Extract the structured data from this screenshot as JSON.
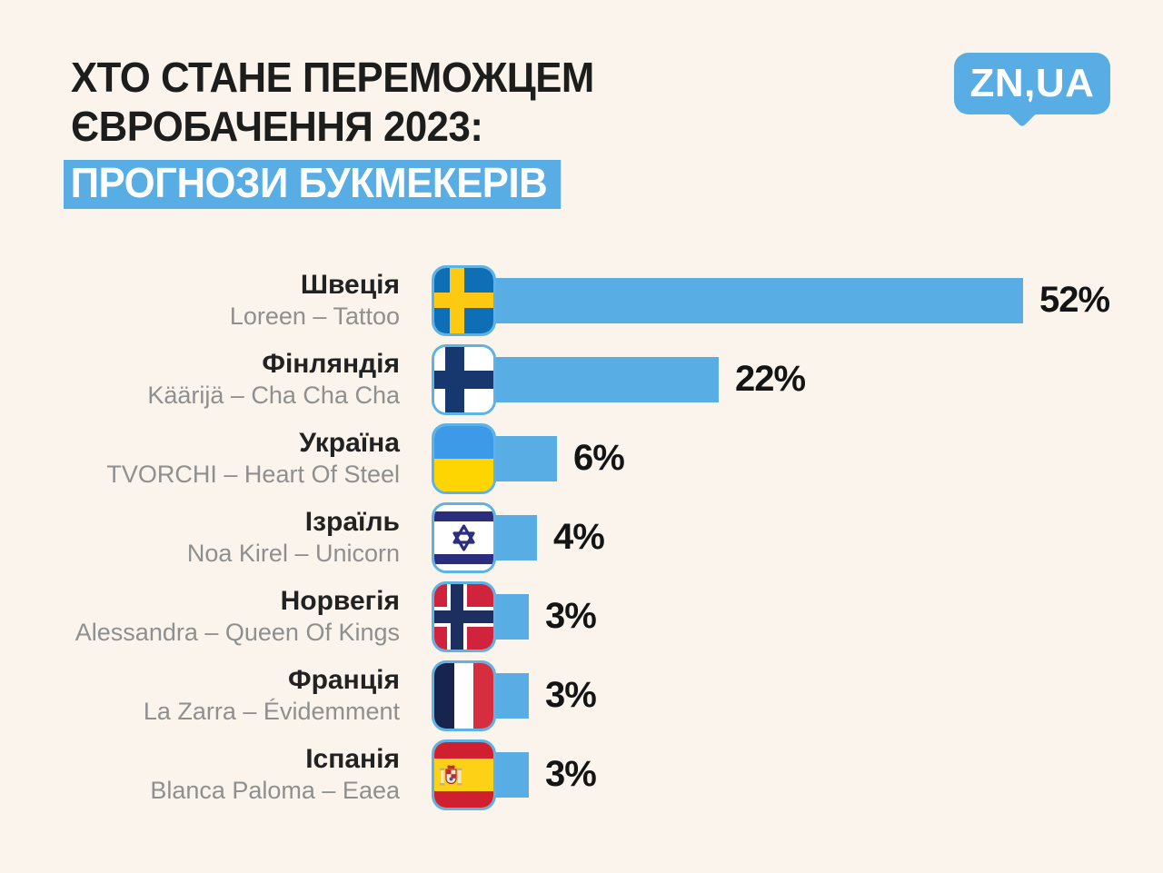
{
  "colors": {
    "background": "#faf4ec",
    "accent_blue": "#57ade4",
    "title_text": "#1d1d1b",
    "artist_text": "#8f8f8f"
  },
  "header": {
    "title_line1": "ХТО СТАНЕ ПЕРЕМОЖЦЕМ",
    "title_line2": "ЄВРОБАЧЕННЯ 2023:",
    "title_highlight": "ПРОГНОЗИ БУКМЕКЕРІВ"
  },
  "logo": {
    "text": "ZN,UA"
  },
  "chart_data": {
    "type": "bar",
    "orientation": "horizontal",
    "title": "ХТО СТАНЕ ПЕРЕМОЖЦЕМ ЄВРОБАЧЕННЯ 2023: ПРОГНОЗИ БУКМЕКЕРІВ",
    "unit": "%",
    "value_axis_range": [
      0,
      52
    ],
    "grid": false,
    "legend": false,
    "bar_color": "#57ade4",
    "categories": [
      "Швеція",
      "Фінляндія",
      "Україна",
      "Ізраїль",
      "Норвегія",
      "Франція",
      "Іспанія"
    ],
    "values": [
      52,
      22,
      6,
      4,
      3,
      3,
      3
    ],
    "rows": [
      {
        "country": "Швеція",
        "artist": "Loreen – Tattoo",
        "value": 52,
        "value_label": "52%",
        "flag": "sweden-flag"
      },
      {
        "country": "Фінляндія",
        "artist": "Käärijä – Cha Cha Cha",
        "value": 22,
        "value_label": "22%",
        "flag": "finland-flag"
      },
      {
        "country": "Україна",
        "artist": "TVORCHI – Heart Of Steel",
        "value": 6,
        "value_label": "6%",
        "flag": "ukraine-flag"
      },
      {
        "country": "Ізраїль",
        "artist": "Noa Kirel – Unicorn",
        "value": 4,
        "value_label": "4%",
        "flag": "israel-flag"
      },
      {
        "country": "Норвегія",
        "artist": "Alessandra – Queen Of Kings",
        "value": 3,
        "value_label": "3%",
        "flag": "norway-flag"
      },
      {
        "country": "Франція",
        "artist": "La Zarra – Évidemment",
        "value": 3,
        "value_label": "3%",
        "flag": "france-flag"
      },
      {
        "country": "Іспанія",
        "artist": "Blanca Paloma – Eaea",
        "value": 3,
        "value_label": "3%",
        "flag": "spain-flag"
      }
    ]
  }
}
